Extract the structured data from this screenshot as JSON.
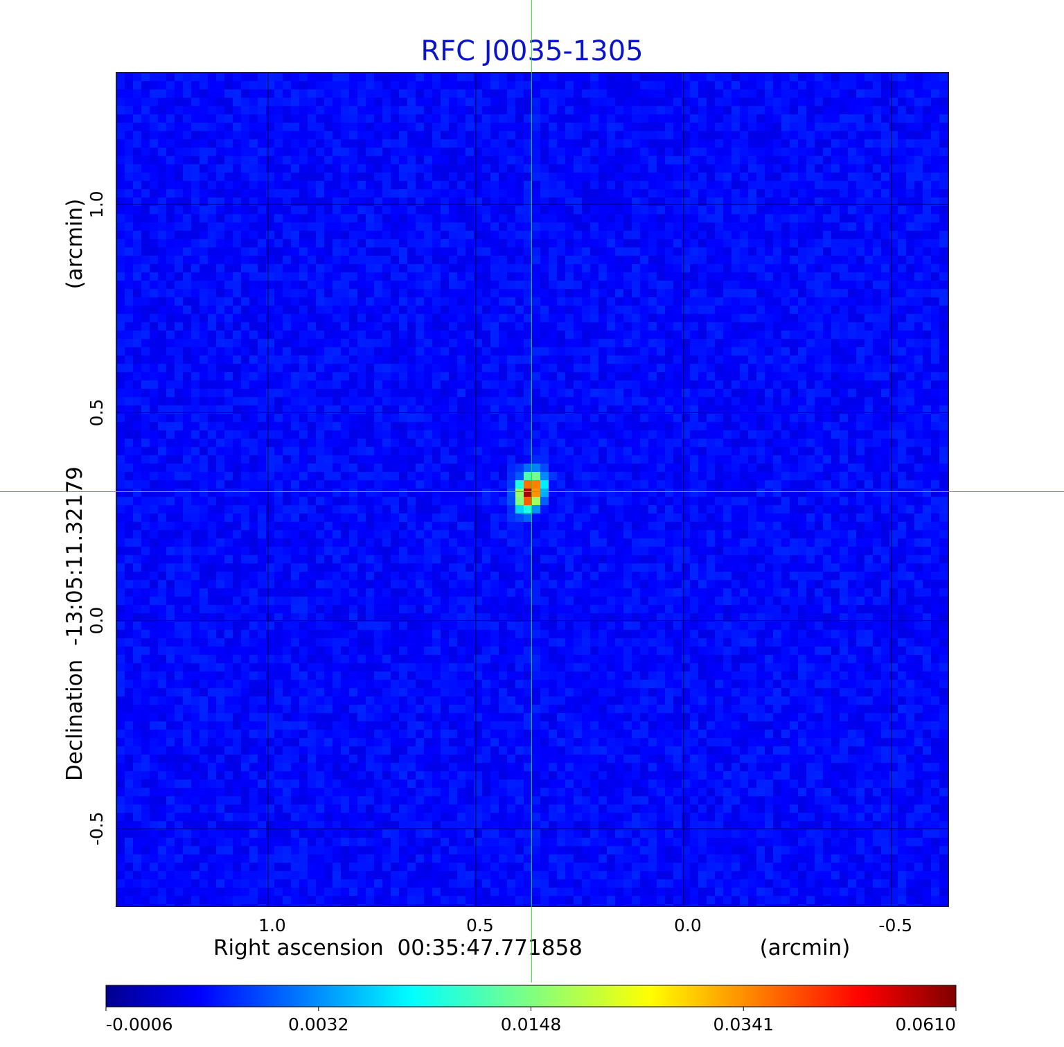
{
  "chart_data": {
    "type": "heatmap",
    "title": "RFC J0035-1305",
    "xlabel": "Right ascension  00:35:47.771858",
    "xunit": "(arcmin)",
    "ylabel": "Declination  -13:05:11.32179",
    "yunit": "(arcmin)",
    "x_ticks": [
      1.0,
      0.5,
      0.0,
      -0.5
    ],
    "x_tick_labels": [
      "1.0",
      "0.5",
      "0.0",
      "-0.5"
    ],
    "y_ticks": [
      1.0,
      0.5,
      0.0,
      -0.5
    ],
    "y_tick_labels": [
      "1.0",
      "0.5",
      "0.0",
      "-0.5"
    ],
    "xlim": [
      1.365,
      -0.637
    ],
    "ylim": [
      -0.687,
      1.317
    ],
    "grid": true,
    "colormap": "jet",
    "colorbar": {
      "tick_values": [
        -0.0006,
        0.0032,
        0.0148,
        0.0341,
        0.061
      ],
      "tick_labels": [
        "-0.0006",
        "0.0032",
        "0.0148",
        "0.0341",
        "0.0610"
      ]
    },
    "source": {
      "x": 0.37,
      "y": 0.31,
      "peak": 0.061
    },
    "crosshair": {
      "x": 0.366,
      "y": 0.31
    },
    "colors": {
      "title": "#0a14c8",
      "crosshair": "#22dd22",
      "grid": "#000000"
    }
  }
}
